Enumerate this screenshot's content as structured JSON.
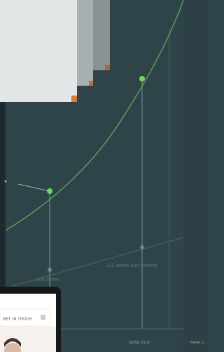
{
  "tablet": {
    "button": "GET IN TOUCH"
  },
  "illustration": {
    "first_label": "200 stores",
    "second_label": "322 stores and growing",
    "axis_label": "NOW 2018",
    "cut_label": "Peter s"
  }
}
